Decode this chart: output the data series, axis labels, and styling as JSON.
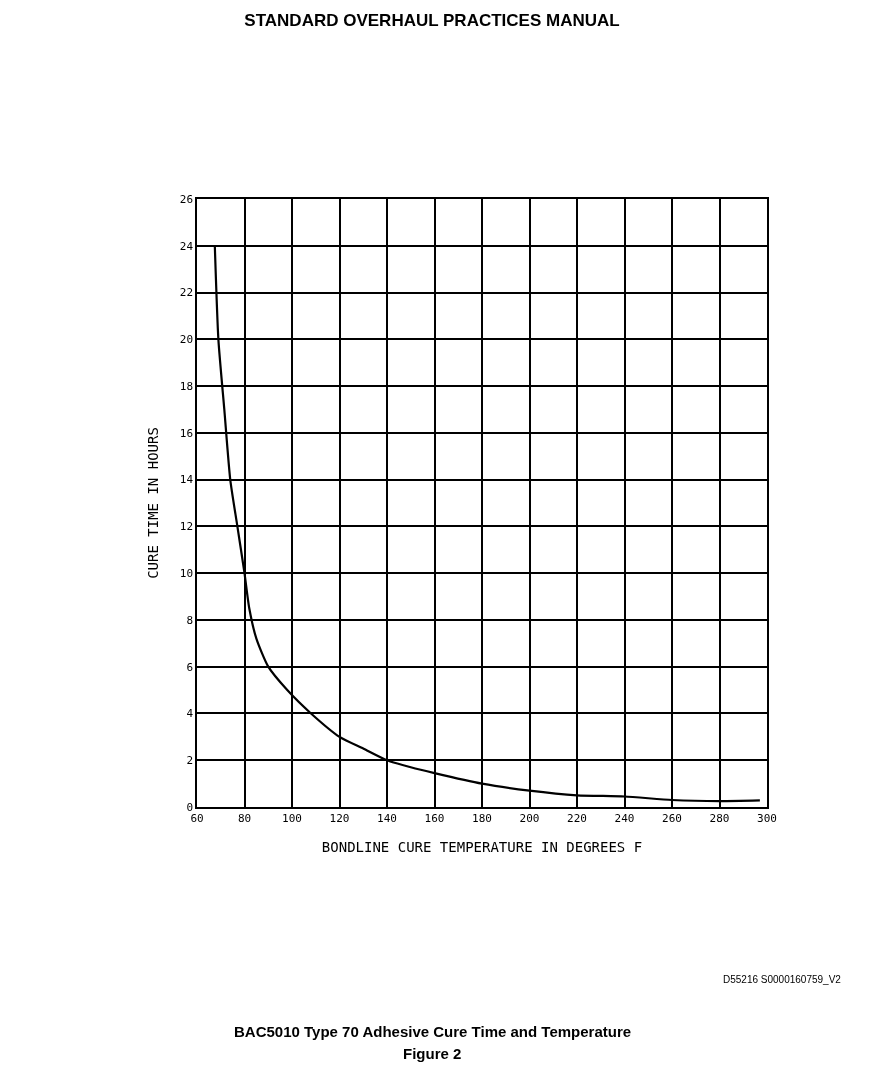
{
  "chart_data": {
    "type": "line",
    "title": "STANDARD OVERHAUL PRACTICES MANUAL",
    "xlabel": "BONDLINE CURE TEMPERATURE IN DEGREES F",
    "ylabel": "CURE TIME IN HOURS",
    "annotations": [
      "D55216 S0000160759_V2",
      "BAC5010 Type 70 Adhesive Cure Time and Temperature",
      "Figure 2"
    ],
    "x": [
      67.5,
      69,
      71.5,
      74,
      77,
      80,
      82,
      85,
      90,
      98,
      108,
      120,
      130,
      140,
      150,
      160,
      180,
      200,
      220,
      240,
      260,
      280,
      297
    ],
    "series": [
      {
        "color": "#000000",
        "values": [
          24,
          20,
          17,
          14,
          12,
          10,
          8.5,
          7.2,
          6,
          5,
          4,
          3,
          2.5,
          2,
          1.7,
          1.45,
          1.0,
          0.7,
          0.5,
          0.45,
          0.3,
          0.25,
          0.28
        ]
      }
    ],
    "xlim": [
      60,
      300
    ],
    "xticks": [
      60,
      80,
      100,
      120,
      140,
      160,
      180,
      200,
      220,
      240,
      260,
      280,
      300
    ],
    "ylim": [
      0,
      26
    ],
    "yticks": [
      0,
      2,
      4,
      6,
      8,
      10,
      12,
      14,
      16,
      18,
      20,
      22,
      24,
      26
    ],
    "grid": true,
    "marker": "none",
    "line_style": "solid"
  }
}
